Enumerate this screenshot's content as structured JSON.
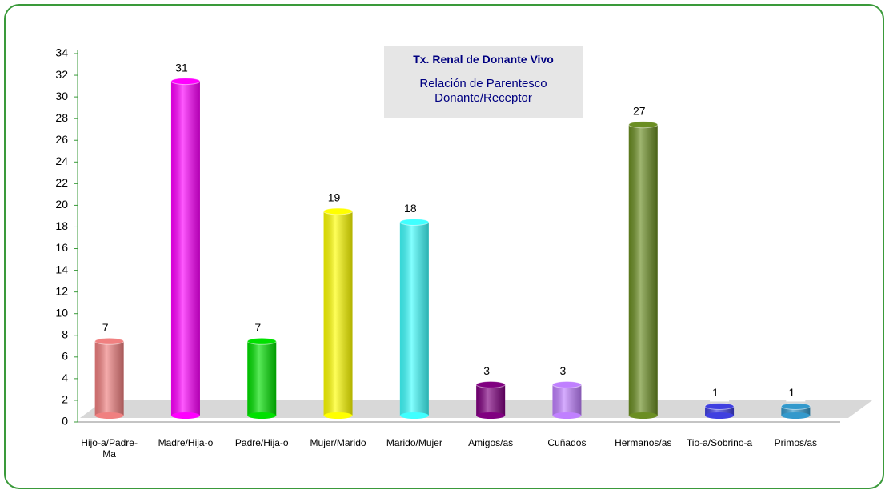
{
  "chart_data": {
    "type": "bar",
    "title": "Tx. Renal de Donante Vivo",
    "subtitle": "Relación de Parentesco Donante/Receptor",
    "categories": [
      "Hijo-a/Padre-Ma",
      "Madre/Hija-o",
      "Padre/Hija-o",
      "Mujer/Marido",
      "Marido/Mujer",
      "Amigos/as",
      "Cuñados",
      "Hermanos/as",
      "Tio-a/Sobrino-a",
      "Primos/as"
    ],
    "values": [
      7,
      31,
      7,
      19,
      18,
      3,
      3,
      27,
      1,
      1
    ],
    "colors": [
      "#f08080",
      "#ff00ff",
      "#00e000",
      "#ffff00",
      "#40ffff",
      "#800080",
      "#c080ff",
      "#6b8e23",
      "#4040e0",
      "#3399cc"
    ],
    "ylim": [
      0,
      34
    ],
    "yticks": [
      0,
      2,
      4,
      6,
      8,
      10,
      12,
      14,
      16,
      18,
      20,
      22,
      24,
      26,
      28,
      30,
      32,
      34
    ],
    "grid": false
  }
}
